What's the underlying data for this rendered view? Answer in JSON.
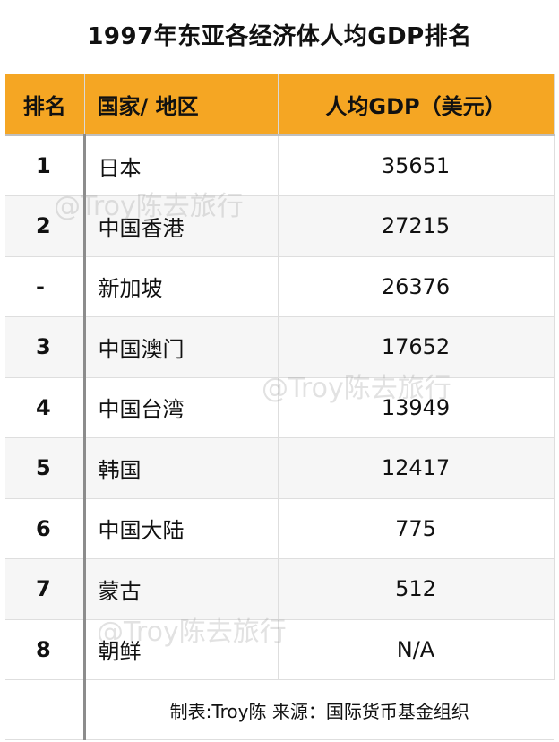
{
  "title": "1997年东亚各经济体人均GDP排名",
  "headers": {
    "rank": "排名",
    "name": "国家/ 地区",
    "gdp": "人均GDP（美元）"
  },
  "rows": [
    {
      "rank": "1",
      "name": "日本",
      "gdp": "35651"
    },
    {
      "rank": "2",
      "name": "中国香港",
      "gdp": "27215"
    },
    {
      "rank": "-",
      "name": "新加坡",
      "gdp": "26376"
    },
    {
      "rank": "3",
      "name": "中国澳门",
      "gdp": "17652"
    },
    {
      "rank": "4",
      "name": "中国台湾",
      "gdp": "13949"
    },
    {
      "rank": "5",
      "name": "韩国",
      "gdp": "12417"
    },
    {
      "rank": "6",
      "name": "中国大陆",
      "gdp": "775"
    },
    {
      "rank": "7",
      "name": "蒙古",
      "gdp": "512"
    },
    {
      "rank": "8",
      "name": "朝鲜",
      "gdp": "N/A"
    }
  ],
  "footer": "制表:Troy陈  来源：国际货币基金组织",
  "watermark": "@Troy陈去旅行",
  "colors": {
    "header_bg": "#F5A623",
    "stripe": "#f6f6f6"
  },
  "chart_data": {
    "type": "table",
    "title": "1997年东亚各经济体人均GDP排名",
    "columns": [
      "排名",
      "国家/ 地区",
      "人均GDP（美元）"
    ],
    "rows": [
      [
        "1",
        "日本",
        "35651"
      ],
      [
        "2",
        "中国香港",
        "27215"
      ],
      [
        "-",
        "新加坡",
        "26376"
      ],
      [
        "3",
        "中国澳门",
        "17652"
      ],
      [
        "4",
        "中国台湾",
        "13949"
      ],
      [
        "5",
        "韩国",
        "12417"
      ],
      [
        "6",
        "中国大陆",
        "775"
      ],
      [
        "7",
        "蒙古",
        "512"
      ],
      [
        "8",
        "朝鲜",
        "N/A"
      ]
    ]
  }
}
